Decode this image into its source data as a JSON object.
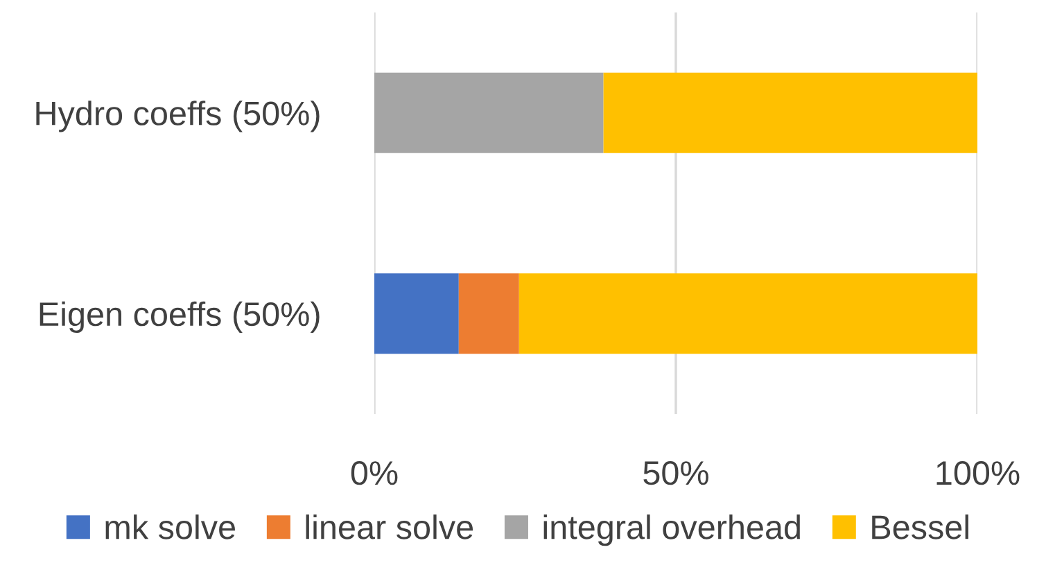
{
  "chart_data": {
    "type": "bar",
    "orientation": "horizontal",
    "stacked": true,
    "categories": [
      "Hydro coeffs (50%)",
      "Eigen coeffs (50%)"
    ],
    "series": [
      {
        "name": "mk solve",
        "color": "#4472c4",
        "values": [
          null,
          14
        ]
      },
      {
        "name": "linear solve",
        "color": "#ed7d31",
        "values": [
          null,
          10
        ]
      },
      {
        "name": "integral overhead",
        "color": "#a5a5a5",
        "values": [
          38,
          null
        ]
      },
      {
        "name": "Bessel",
        "color": "#ffc000",
        "values": [
          62,
          76
        ]
      }
    ],
    "xlim": [
      0,
      100
    ],
    "xticks": [
      {
        "value": 0,
        "label": "0%"
      },
      {
        "value": 50,
        "label": "50%"
      },
      {
        "value": 100,
        "label": "100%"
      }
    ],
    "grid": "x",
    "legend": "bottom"
  }
}
